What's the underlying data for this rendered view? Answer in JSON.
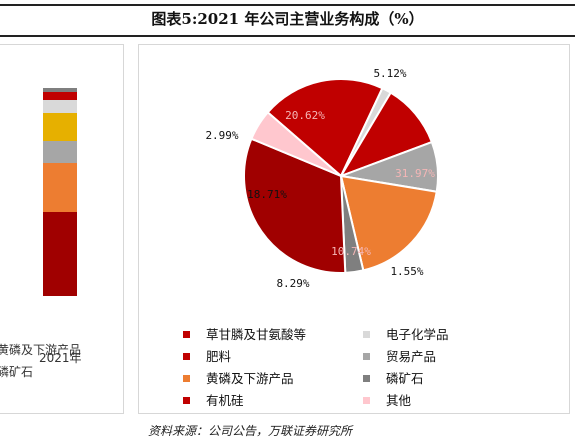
{
  "header": {
    "title": "图表5:2021 年公司主营业务构成（%）"
  },
  "chart_data": {
    "type": "pie",
    "series": [
      {
        "name": "草甘膦及甘氨酸等",
        "value": 20.62,
        "color": "#c00000"
      },
      {
        "name": "电子化学品",
        "value": 1.55,
        "color": "#d9d9d9"
      },
      {
        "name": "肥料",
        "value": 10.74,
        "color": "#c00000"
      },
      {
        "name": "贸易产品",
        "value": 8.29,
        "color": "#a6a6a6"
      },
      {
        "name": "黄磷及下游产品",
        "value": 18.71,
        "color": "#ed7d31"
      },
      {
        "name": "磷矿石",
        "value": 2.99,
        "color": "#7f7f7f"
      },
      {
        "name": "有机硅",
        "value": 31.97,
        "color": "#a00000"
      },
      {
        "name": "其他",
        "value": 5.12,
        "color": "#ffc7ce"
      }
    ],
    "labels": [
      "20.62%",
      "1.55%",
      "10.74%",
      "8.29%",
      "18.71%",
      "2.99%",
      "31.97%",
      "5.12%"
    ]
  },
  "left_chart": {
    "x_label": "2021年",
    "legend_fragments": [
      "黄磷及下游产品",
      "磷矿石"
    ],
    "stack": [
      {
        "name": "有机硅",
        "value": 31.97,
        "color": "#a00000"
      },
      {
        "name": "黄磷及下游产品",
        "value": 18.71,
        "color": "#ed7d31"
      },
      {
        "name": "贸易产品",
        "value": 8.29,
        "color": "#a6a6a6"
      },
      {
        "name": "肥料",
        "value": 10.74,
        "color": "#e6b000"
      },
      {
        "name": "其他",
        "value": 5.12,
        "color": "#d9d9d9"
      },
      {
        "name": "磷矿石",
        "value": 2.99,
        "color": "#c00000"
      },
      {
        "name": "电子化学品",
        "value": 1.55,
        "color": "#7f7f7f"
      }
    ]
  },
  "legend": {
    "items": [
      {
        "label": "草甘膦及甘氨酸等",
        "color": "#c00000"
      },
      {
        "label": "电子化学品",
        "color": "#d9d9d9"
      },
      {
        "label": "肥料",
        "color": "#c00000"
      },
      {
        "label": "贸易产品",
        "color": "#a6a6a6"
      },
      {
        "label": "黄磷及下游产品",
        "color": "#ed7d31"
      },
      {
        "label": "磷矿石",
        "color": "#7f7f7f"
      },
      {
        "label": "有机硅",
        "color": "#c00000"
      },
      {
        "label": "其他",
        "color": "#ffc7ce"
      }
    ]
  },
  "footer": {
    "source": "资料来源：公司公告，万联证券研究所"
  }
}
